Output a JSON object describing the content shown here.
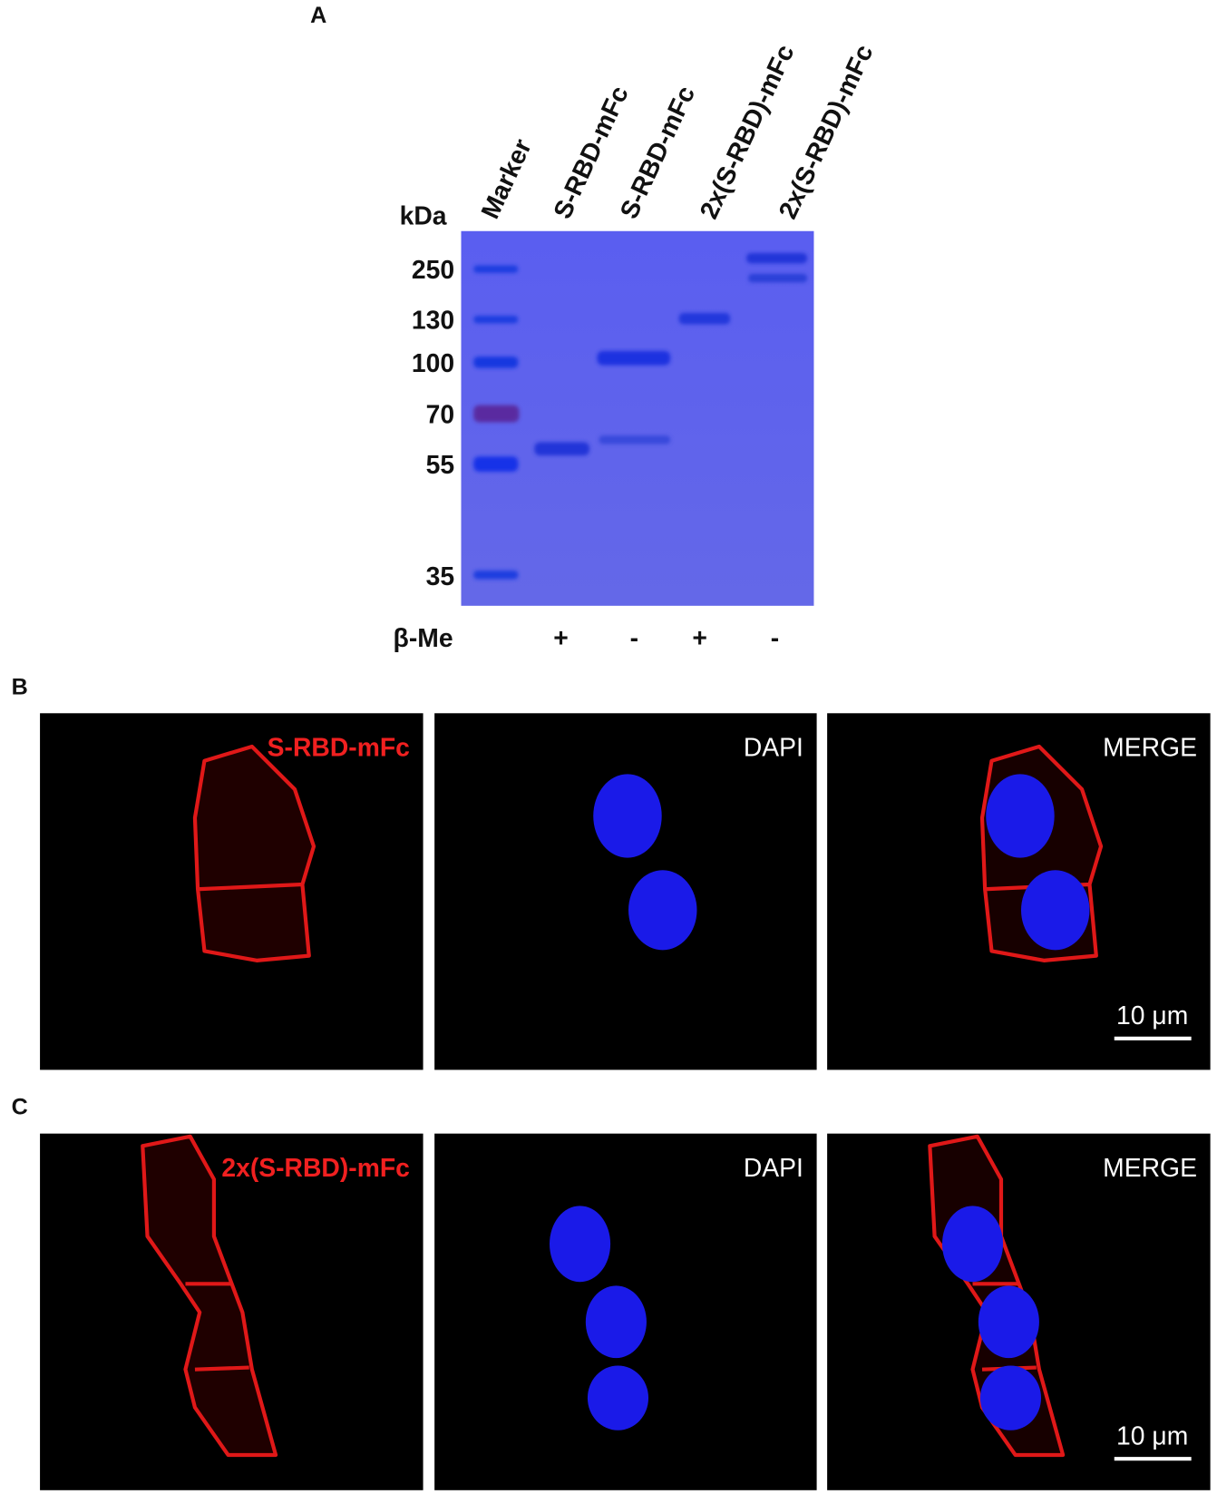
{
  "panel_a": {
    "label": "A",
    "unit": "kDa",
    "lanes": [
      "Marker",
      "S-RBD-mFc",
      "S-RBD-mFc",
      "2x(S-RBD)-mFc",
      "2x(S-RBD)-mFc"
    ],
    "markers": [
      "250",
      "130",
      "100",
      "70",
      "55",
      "35"
    ],
    "reducing_label": "β-Me",
    "reducing": [
      "+",
      "-",
      "+",
      "-"
    ]
  },
  "panel_b": {
    "label": "B",
    "images": [
      "S-RBD-mFc",
      "DAPI",
      "MERGE"
    ],
    "scale_bar": "10 μm"
  },
  "panel_c": {
    "label": "C",
    "images": [
      "2x(S-RBD)-mFc",
      "DAPI",
      "MERGE"
    ],
    "scale_bar": "10 μm"
  }
}
